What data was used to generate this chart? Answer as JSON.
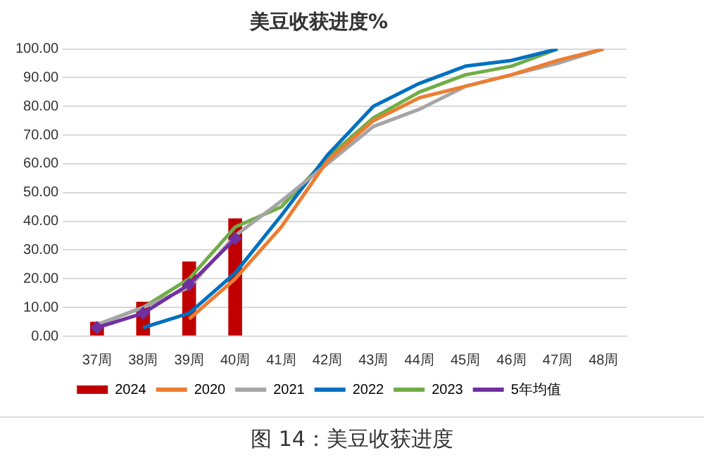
{
  "chart_data": {
    "type": "bar",
    "title": "美豆收获进度%",
    "annotations": [
      "图 14：美豆收获进度"
    ],
    "categories": [
      "37周",
      "38周",
      "39周",
      "40周",
      "41周",
      "42周",
      "43周",
      "44周",
      "45周",
      "46周",
      "47周",
      "48周"
    ],
    "series": [
      {
        "name": "2024",
        "color": "#c00000",
        "values": [
          5,
          12,
          26,
          41,
          null,
          null,
          null,
          null,
          null,
          null,
          null,
          null
        ]
      },
      {
        "name": "2020",
        "type": "line",
        "color": "#ed7d31",
        "values": [
          null,
          null,
          6,
          20,
          38,
          61,
          75,
          83,
          87,
          91,
          96,
          100
        ]
      },
      {
        "name": "2021",
        "type": "line",
        "color": "#a5a5a5",
        "values": [
          4,
          10,
          17,
          35,
          47,
          60,
          73,
          79,
          87,
          91,
          95,
          100
        ]
      },
      {
        "name": "2022",
        "type": "line",
        "color": "#0070c0",
        "values": [
          null,
          3,
          8,
          22,
          42,
          63,
          80,
          88,
          94,
          96,
          100,
          null
        ]
      },
      {
        "name": "2023",
        "type": "line",
        "color": "#70ad47",
        "values": [
          4,
          10,
          20,
          38,
          45,
          62,
          76,
          85,
          91,
          94,
          100,
          null
        ]
      },
      {
        "name": "5年均值",
        "type": "line",
        "color": "#7030a0",
        "marker": "diamond",
        "values": [
          3,
          8,
          18,
          34,
          null,
          null,
          null,
          null,
          null,
          null,
          null,
          null
        ]
      }
    ],
    "ylim": [
      0,
      100
    ],
    "yticks": [
      {
        "value": 0,
        "label": "0.00"
      },
      {
        "value": 10,
        "label": "10.00"
      },
      {
        "value": 20,
        "label": "20.00"
      },
      {
        "value": 30,
        "label": "30.00"
      },
      {
        "value": 40,
        "label": "40.00"
      },
      {
        "value": 50,
        "label": "50.00"
      },
      {
        "value": 60,
        "label": "60.00"
      },
      {
        "value": 70,
        "label": "70.00"
      },
      {
        "value": 80,
        "label": "80.00"
      },
      {
        "value": 90,
        "label": "90.00"
      },
      {
        "value": 100,
        "label": "100.00"
      }
    ],
    "grid": "y",
    "legend": "bottom"
  }
}
